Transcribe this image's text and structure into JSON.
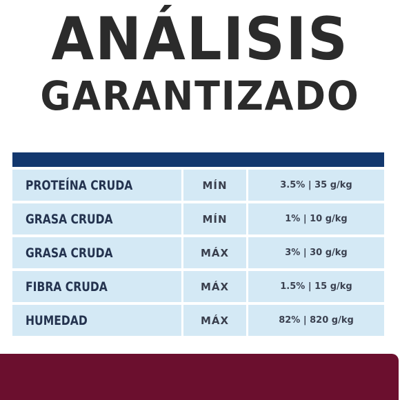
{
  "title": {
    "line1": "ANÁLISIS",
    "line2": "GARANTIZADO"
  },
  "colors": {
    "header_bar": "#13386e",
    "row_background": "#d4e9f5",
    "bottom_band": "#6b0f2e",
    "title_text": "#2b2b2b"
  },
  "table": {
    "rows": [
      {
        "nutrient": "PROTEÍNA CRUDA",
        "type": "MÍN",
        "value": "3.5% | 35 g/kg"
      },
      {
        "nutrient": "GRASA CRUDA",
        "type": "MÍN",
        "value": "1% | 10 g/kg"
      },
      {
        "nutrient": "GRASA CRUDA",
        "type": "MÁX",
        "value": "3% | 30 g/kg"
      },
      {
        "nutrient": "FIBRA CRUDA",
        "type": "MÁX",
        "value": "1.5% | 15 g/kg"
      },
      {
        "nutrient": "HUMEDAD",
        "type": "MÁX",
        "value": "82% | 820 g/kg"
      }
    ]
  }
}
